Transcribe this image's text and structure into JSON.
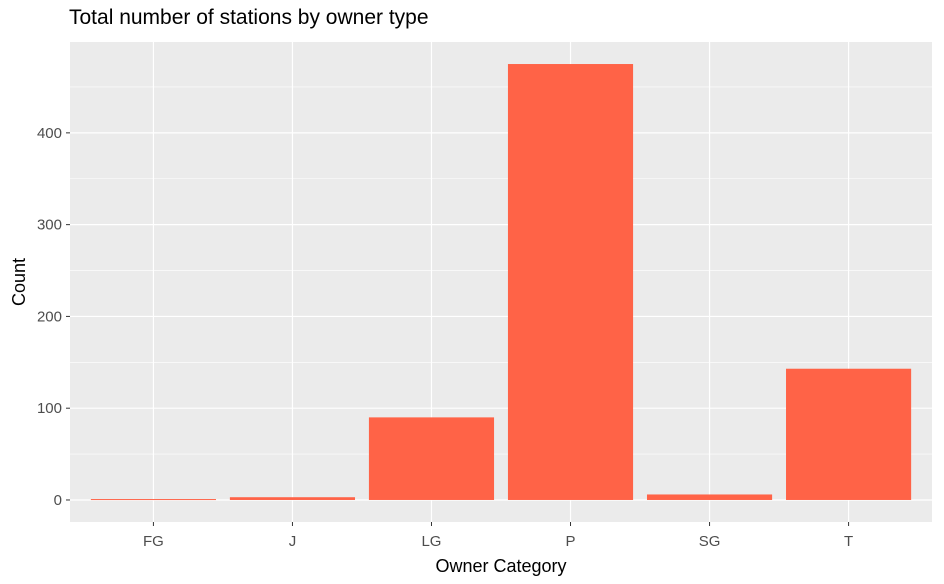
{
  "chart_data": {
    "type": "bar",
    "title": "Total number of stations by owner type",
    "xlabel": "Owner Category",
    "ylabel": "Count",
    "categories": [
      "FG",
      "J",
      "LG",
      "P",
      "SG",
      "T"
    ],
    "values": [
      1,
      3,
      90,
      475,
      6,
      143
    ],
    "ylim": [
      -24,
      499
    ],
    "yticks": [
      0,
      100,
      200,
      300,
      400
    ],
    "grid": true,
    "legend": "none",
    "bar_color": "#FF6347",
    "panel_color": "#EBEBEB",
    "grid_color": "#FFFFFF",
    "tick_label_color": "#4D4D4D"
  }
}
